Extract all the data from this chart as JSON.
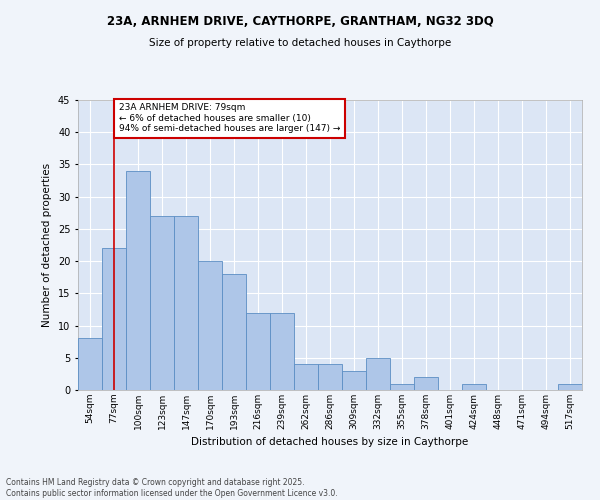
{
  "title1": "23A, ARNHEM DRIVE, CAYTHORPE, GRANTHAM, NG32 3DQ",
  "title2": "Size of property relative to detached houses in Caythorpe",
  "xlabel": "Distribution of detached houses by size in Caythorpe",
  "ylabel": "Number of detached properties",
  "categories": [
    "54sqm",
    "77sqm",
    "100sqm",
    "123sqm",
    "147sqm",
    "170sqm",
    "193sqm",
    "216sqm",
    "239sqm",
    "262sqm",
    "286sqm",
    "309sqm",
    "332sqm",
    "355sqm",
    "378sqm",
    "401sqm",
    "424sqm",
    "448sqm",
    "471sqm",
    "494sqm",
    "517sqm"
  ],
  "values": [
    8,
    22,
    34,
    27,
    27,
    20,
    18,
    12,
    12,
    4,
    4,
    3,
    5,
    1,
    2,
    0,
    1,
    0,
    0,
    0,
    1
  ],
  "bar_color": "#aec6e8",
  "bar_edge_color": "#5b8ec4",
  "bg_color": "#dce6f5",
  "grid_color": "#ffffff",
  "fig_color": "#f0f4fa",
  "red_line_x": 1,
  "annotation_text": "23A ARNHEM DRIVE: 79sqm\n← 6% of detached houses are smaller (10)\n94% of semi-detached houses are larger (147) →",
  "annotation_box_color": "#cc0000",
  "ylim": [
    0,
    45
  ],
  "yticks": [
    0,
    5,
    10,
    15,
    20,
    25,
    30,
    35,
    40,
    45
  ],
  "footer1": "Contains HM Land Registry data © Crown copyright and database right 2025.",
  "footer2": "Contains public sector information licensed under the Open Government Licence v3.0."
}
